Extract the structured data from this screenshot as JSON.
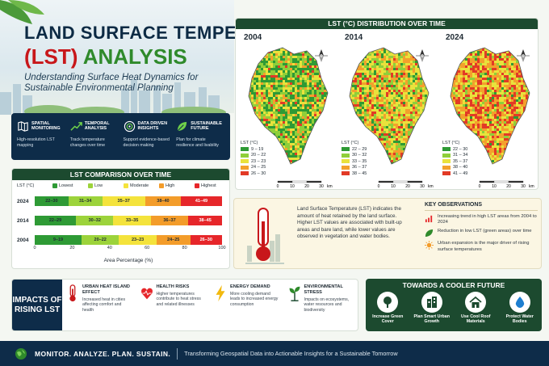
{
  "header": {
    "title_line1": "LAND SURFACE TEMPERATURE",
    "title_line2_red": "(LST)",
    "title_line2_green": "ANALYSIS",
    "subtitle": "Understanding Surface Heat Dynamics for Sustainable Environmental Planning"
  },
  "features": [
    {
      "title": "Spatial Monitoring",
      "desc": "High-resolution LST mapping",
      "icon": "map-icon"
    },
    {
      "title": "Temporal Analysis",
      "desc": "Track temperature changes over time",
      "icon": "trend-icon"
    },
    {
      "title": "Data Driven Insights",
      "desc": "Support evidence-based decision making",
      "icon": "target-icon"
    },
    {
      "title": "Sustainable Future",
      "desc": "Plan for climate resilience and livability",
      "icon": "leaf-icon"
    }
  ],
  "comparison": {
    "title": "LST COMPARISON OVER TIME",
    "legend_title": "LST (°C)",
    "legend": [
      "Lowest",
      "Low",
      "Moderate",
      "High",
      "Highest"
    ],
    "colors": [
      "#2e9a35",
      "#9cd33b",
      "#f4e33c",
      "#f39c2a",
      "#e6262a"
    ],
    "rows": [
      {
        "year": "2024",
        "labels": [
          "22–30",
          "31–34",
          "35–37",
          "38–40",
          "41–49"
        ],
        "values": [
          18,
          18,
          23,
          19,
          22
        ]
      },
      {
        "year": "2014",
        "labels": [
          "22–29",
          "30–32",
          "33–35",
          "36–37",
          "38–45"
        ],
        "values": [
          22,
          20,
          20,
          20,
          18
        ]
      },
      {
        "year": "2004",
        "labels": [
          "9–19",
          "20–22",
          "23–23",
          "24–25",
          "26–30"
        ],
        "values": [
          25,
          20,
          20,
          18,
          17
        ]
      }
    ],
    "ticks": [
      "0",
      "20",
      "40",
      "60",
      "80",
      "100"
    ],
    "xlabel": "Area Percentage (%)"
  },
  "impacts": {
    "title": "IMPACTS OF RISING LST",
    "items": [
      {
        "title": "Urban Heat Island Effect",
        "desc": "Increased heat in cities affecting comfort and health",
        "icon": "thermometer-icon"
      },
      {
        "title": "Health Risks",
        "desc": "Higher temperatures contribute to heat stress and related illnesses",
        "icon": "heartbeat-icon"
      },
      {
        "title": "Energy Demand",
        "desc": "More cooling demand leads to increased energy consumption",
        "icon": "lightning-icon"
      },
      {
        "title": "Environmental Stress",
        "desc": "Impacts on ecosystems, water resources and biodiversity",
        "icon": "plant-icon"
      }
    ]
  },
  "maps": {
    "title": "LST (°C) DISTRIBUTION OVER TIME",
    "legend_title": "LST (°C)",
    "scale_ticks": [
      "0",
      "10",
      "20",
      "30"
    ],
    "scale_unit": "km",
    "panels": [
      {
        "year": "2004",
        "ranges": [
          "9 – 19",
          "20 – 22",
          "23 – 23",
          "24 – 25",
          "26 – 30"
        ],
        "palette": [
          "#2e9a35",
          "#8fcf3a",
          "#e9e23c",
          "#f3a02c",
          "#e23a26"
        ]
      },
      {
        "year": "2014",
        "ranges": [
          "22 – 29",
          "30 – 32",
          "33 – 35",
          "36 – 37",
          "38 – 45"
        ],
        "palette": [
          "#2e9a35",
          "#8fcf3a",
          "#e9e23c",
          "#f3a02c",
          "#e23a26"
        ]
      },
      {
        "year": "2024",
        "ranges": [
          "22 – 30",
          "31 – 34",
          "35 – 37",
          "38 – 40",
          "41 – 49"
        ],
        "palette": [
          "#2e9a35",
          "#8fcf3a",
          "#e9e23c",
          "#f3a02c",
          "#e23a26"
        ]
      }
    ]
  },
  "info": {
    "text": "Land Surface Temperature (LST) indicates the amount of heat retained by the land surface. Higher LST values are associated with built-up areas and bare land, while lower values are observed in vegetation and water bodies.",
    "obs_title": "KEY OBSERVATIONS",
    "observations": [
      {
        "text": "Increasing trend in high LST areas from 2004 to 2024",
        "icon": "bar-chart-icon"
      },
      {
        "text": "Reduction in low LST (green areas) over time",
        "icon": "leaf-icon"
      },
      {
        "text": "Urban expansion is the major driver of rising surface temperatures",
        "icon": "sun-icon"
      }
    ]
  },
  "future": {
    "title": "TOWARDS A COOLER FUTURE",
    "items": [
      {
        "label": "Increase Green Cover",
        "icon": "tree-icon"
      },
      {
        "label": "Plan Smart Urban Growth",
        "icon": "building-icon"
      },
      {
        "label": "Use Cool Roof Materials",
        "icon": "house-icon"
      },
      {
        "label": "Protect Water Bodies",
        "icon": "water-drop-icon"
      }
    ]
  },
  "footer": {
    "motto": "MONITOR. ANALYZE. PLAN. SUSTAIN.",
    "tagline": "Transforming Geospatial Data into Actionable Insights for a Sustainable Tomorrow"
  }
}
